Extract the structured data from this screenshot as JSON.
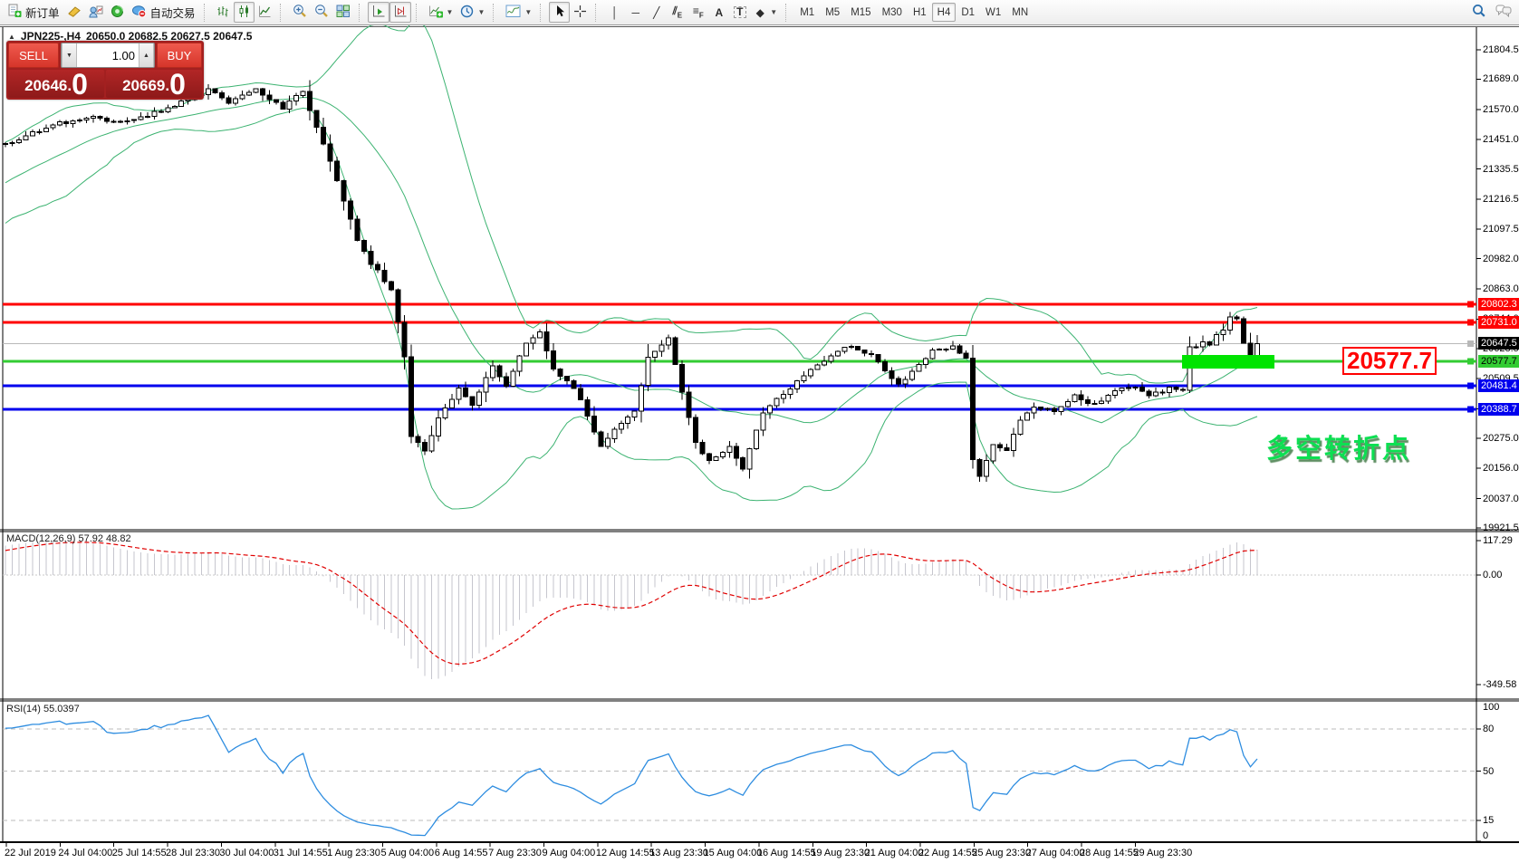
{
  "toolbar": {
    "groups": [
      [
        {
          "name": "new-order",
          "icon": "new-order",
          "label": "新订单"
        },
        {
          "name": "market-watch",
          "icon": "market-watch"
        },
        {
          "name": "navigator",
          "icon": "navigator"
        },
        {
          "name": "terminal",
          "icon": "terminal"
        },
        {
          "name": "autotrading",
          "icon": "autotrading",
          "label": "自动交易"
        }
      ],
      [
        {
          "name": "chart-bars",
          "icon": "chart-bars"
        },
        {
          "name": "chart-candles",
          "icon": "chart-candles",
          "active": true
        },
        {
          "name": "chart-line",
          "icon": "chart-line"
        }
      ],
      [
        {
          "name": "zoom-in",
          "icon": "zoom-in"
        },
        {
          "name": "zoom-out",
          "icon": "zoom-out"
        },
        {
          "name": "tile-windows",
          "icon": "tile-windows"
        }
      ],
      [
        {
          "name": "auto-scroll",
          "icon": "auto-scroll",
          "active": true
        },
        {
          "name": "chart-shift",
          "icon": "chart-shift",
          "active": true
        }
      ],
      [
        {
          "name": "new-chart",
          "icon": "new-chart",
          "dropdown": true
        },
        {
          "name": "profiles",
          "icon": "profiles",
          "dropdown": true
        }
      ],
      [
        {
          "name": "indicators",
          "icon": "indicators",
          "dropdown": true
        }
      ],
      [
        {
          "name": "cursor",
          "icon": "cursor",
          "active": true
        },
        {
          "name": "crosshair",
          "icon": "crosshair"
        }
      ],
      [
        {
          "name": "vertical-line",
          "glyph": "│"
        },
        {
          "name": "horizontal-line",
          "glyph": "─"
        },
        {
          "name": "trendline",
          "glyph": "╱"
        },
        {
          "name": "equidistant-channel",
          "glyph": "⫽",
          "sub": "E"
        },
        {
          "name": "fibonacci",
          "glyph": "≡",
          "sub": "F"
        },
        {
          "name": "text",
          "glyph": "A"
        },
        {
          "name": "text-label",
          "glyph": "T",
          "boxed": true
        },
        {
          "name": "shapes",
          "glyph": "◆",
          "dropdown": true
        }
      ]
    ],
    "timeframes": [
      "M1",
      "M5",
      "M15",
      "M30",
      "H1",
      "H4",
      "D1",
      "W1",
      "MN"
    ],
    "active_timeframe": "H4"
  },
  "header": {
    "collapse_icon": "▲",
    "symbol": "JPN225-,H4",
    "ohlc": "20650.0 20682.5 20627.5 20647.5"
  },
  "order_panel": {
    "sell_label": "SELL",
    "buy_label": "BUY",
    "volume": "1.00",
    "sell_price_main": "20646",
    "sell_price_dot": ".",
    "sell_price_big": "0",
    "buy_price_main": "20669",
    "buy_price_dot": ".",
    "buy_price_big": "0"
  },
  "annotations": {
    "price_note": "20577.7",
    "turning_point_note": "多空转折点",
    "highlight_color": "#00e400"
  },
  "chart_data": {
    "type": "candlestick",
    "symbol": "JPN225-,H4",
    "timeframe": "H4",
    "ohlc_display": {
      "open": "20650.0",
      "high": "20682.5",
      "low": "20627.5",
      "close": "20647.5"
    },
    "bars": 186,
    "close_anchors": [
      [
        0,
        21430
      ],
      [
        6,
        21500
      ],
      [
        12,
        21540
      ],
      [
        18,
        21520
      ],
      [
        24,
        21575
      ],
      [
        30,
        21645
      ],
      [
        33,
        21600
      ],
      [
        37,
        21650
      ],
      [
        41,
        21575
      ],
      [
        44,
        21645
      ],
      [
        46,
        21500
      ],
      [
        49,
        21290
      ],
      [
        52,
        21060
      ],
      [
        54,
        20965
      ],
      [
        57,
        20860
      ],
      [
        59,
        20600
      ],
      [
        60,
        20280
      ],
      [
        62,
        20230
      ],
      [
        64,
        20350
      ],
      [
        67,
        20470
      ],
      [
        69,
        20410
      ],
      [
        72,
        20560
      ],
      [
        74,
        20480
      ],
      [
        77,
        20650
      ],
      [
        79,
        20695
      ],
      [
        81,
        20545
      ],
      [
        83,
        20505
      ],
      [
        85,
        20430
      ],
      [
        88,
        20245
      ],
      [
        90,
        20305
      ],
      [
        93,
        20385
      ],
      [
        95,
        20590
      ],
      [
        98,
        20675
      ],
      [
        100,
        20460
      ],
      [
        102,
        20255
      ],
      [
        104,
        20185
      ],
      [
        107,
        20245
      ],
      [
        109,
        20155
      ],
      [
        112,
        20375
      ],
      [
        114,
        20425
      ],
      [
        117,
        20500
      ],
      [
        120,
        20560
      ],
      [
        122,
        20600
      ],
      [
        125,
        20640
      ],
      [
        128,
        20600
      ],
      [
        130,
        20545
      ],
      [
        132,
        20485
      ],
      [
        134,
        20540
      ],
      [
        137,
        20615
      ],
      [
        140,
        20640
      ],
      [
        142,
        20585
      ],
      [
        143,
        20190
      ],
      [
        144,
        20125
      ],
      [
        146,
        20250
      ],
      [
        148,
        20225
      ],
      [
        150,
        20350
      ],
      [
        152,
        20400
      ],
      [
        155,
        20380
      ],
      [
        158,
        20440
      ],
      [
        161,
        20405
      ],
      [
        163,
        20450
      ],
      [
        166,
        20480
      ],
      [
        169,
        20445
      ],
      [
        172,
        20470
      ],
      [
        174,
        20460
      ],
      [
        175,
        20640
      ],
      [
        176,
        20630
      ],
      [
        177,
        20660
      ],
      [
        178,
        20645
      ],
      [
        179,
        20680
      ],
      [
        180,
        20700
      ],
      [
        181,
        20755
      ],
      [
        182,
        20740
      ],
      [
        183,
        20645
      ],
      [
        184,
        20585
      ],
      [
        185,
        20647.5
      ]
    ],
    "candle_colors": {
      "up_fill": "#ffffff",
      "down_fill": "#000000",
      "outline": "#000000"
    },
    "indicators": {
      "bollinger": {
        "period": 20,
        "deviation": 2,
        "color": "#3cb371"
      },
      "macd": {
        "label": "MACD(12,26,9) 57.92 48.82",
        "fast": 12,
        "slow": 26,
        "signal_period": 9,
        "value": 57.92,
        "signal_value": 48.82,
        "axis_ticks": [
          "117.29",
          "0.00",
          "-349.58"
        ],
        "hist_color": "#c6c6ce",
        "signal_color": "#e00000"
      },
      "rsi": {
        "label": "RSI(14) 55.0397",
        "period": 14,
        "value": 55.0397,
        "axis_ticks": [
          "100",
          "80",
          "50",
          "15",
          "0"
        ],
        "levels": [
          80,
          50,
          15
        ],
        "color": "#2e8de0"
      }
    },
    "price_ticks": [
      "21804.5",
      "21689.0",
      "21570.0",
      "21451.0",
      "21335.5",
      "21216.5",
      "21097.5",
      "20982.0",
      "20863.0",
      "20744.0",
      "20628.5",
      "20509.5",
      "20390.5",
      "20275.0",
      "20156.0",
      "20037.0",
      "19921.5"
    ],
    "levels": [
      {
        "price": 20802.3,
        "label": "20802.3",
        "color": "#ff0000",
        "label_bg": "#ff0000",
        "text": "#ffffff",
        "thick": 3
      },
      {
        "price": 20731.0,
        "label": "20731.0",
        "color": "#ff0000",
        "label_bg": "#ff0000",
        "text": "#ffffff",
        "thick": 3
      },
      {
        "price": 20647.5,
        "label": "20647.5",
        "color": "#b8b8b8",
        "label_bg": "#000000",
        "text": "#ffffff",
        "thick": 1
      },
      {
        "price": 20577.7,
        "label": "20577.7",
        "color": "#33cc33",
        "label_bg": "#33cc33",
        "text": "#000000",
        "thick": 3
      },
      {
        "price": 20481.4,
        "label": "20481.4",
        "color": "#0000ee",
        "label_bg": "#0000ee",
        "text": "#ffffff",
        "thick": 3
      },
      {
        "price": 20388.7,
        "label": "20388.7",
        "color": "#0000ee",
        "label_bg": "#0000ee",
        "text": "#ffffff",
        "thick": 3
      }
    ],
    "time_labels": [
      "22 Jul 2019",
      "24 Jul 04:00",
      "25 Jul 14:55",
      "28 Jul 23:30",
      "30 Jul 04:00",
      "31 Jul 14:55",
      "1 Aug 23:30",
      "5 Aug 04:00",
      "6 Aug 14:55",
      "7 Aug 23:30",
      "9 Aug 04:00",
      "12 Aug 14:55",
      "13 Aug 23:30",
      "15 Aug 04:00",
      "16 Aug 14:55",
      "19 Aug 23:30",
      "21 Aug 04:00",
      "22 Aug 14:55",
      "25 Aug 23:30",
      "27 Aug 04:00",
      "28 Aug 14:55",
      "29 Aug 23:30"
    ]
  }
}
